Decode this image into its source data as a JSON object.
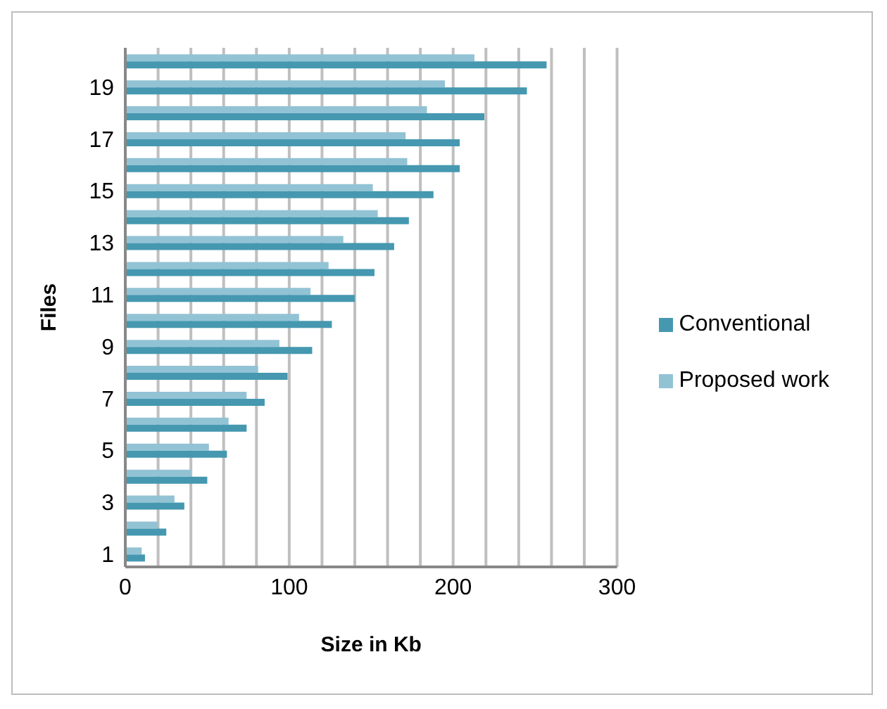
{
  "chart_data": {
    "type": "bar",
    "orientation": "horizontal",
    "xlabel": "Size in Kb",
    "ylabel": "Files",
    "categories": [
      null,
      "19",
      null,
      "17",
      null,
      "15",
      null,
      "13",
      null,
      "11",
      null,
      "9",
      null,
      "7",
      null,
      "5",
      null,
      "3",
      null,
      "1"
    ],
    "series": [
      {
        "name": "Proposed work",
        "color": "#92c3d5",
        "values": [
          213,
          195,
          184,
          171,
          172,
          151,
          154,
          133,
          124,
          113,
          106,
          94,
          81,
          74,
          63,
          51,
          40,
          30,
          20,
          10
        ]
      },
      {
        "name": "Conventional",
        "color": "#4598b0",
        "values": [
          257,
          245,
          219,
          204,
          204,
          188,
          173,
          164,
          152,
          140,
          126,
          114,
          99,
          85,
          74,
          62,
          50,
          36,
          25,
          12
        ]
      }
    ],
    "xlim": [
      0,
      300
    ],
    "xticks": [
      0,
      {
        "value": 20,
        "label": null
      },
      {
        "value": 40,
        "label": null
      },
      {
        "value": 60,
        "label": null
      },
      {
        "value": 80,
        "label": null
      },
      100,
      {
        "value": 120,
        "label": null
      },
      {
        "value": 140,
        "label": null
      },
      {
        "value": 160,
        "label": null
      },
      {
        "value": 180,
        "label": null
      },
      200,
      {
        "value": 220,
        "label": null
      },
      {
        "value": 240,
        "label": null
      },
      {
        "value": 260,
        "label": null
      },
      {
        "value": 280,
        "label": null
      },
      300
    ],
    "grid": "x",
    "legend": "right"
  }
}
